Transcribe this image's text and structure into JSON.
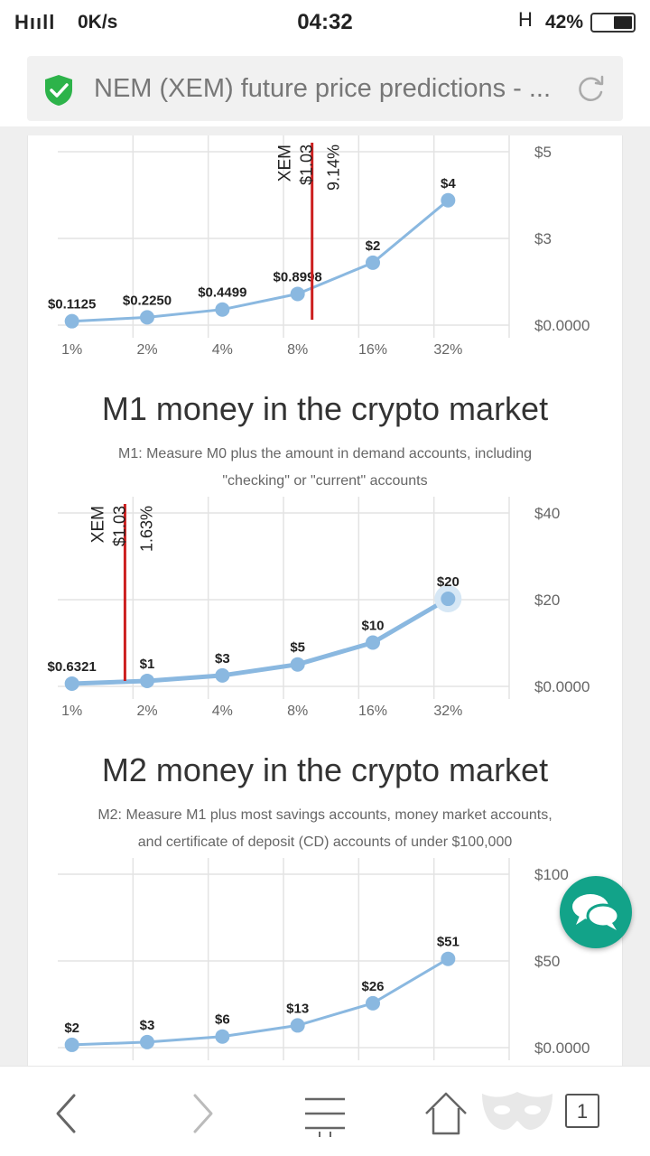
{
  "status_bar": {
    "signal": "Hııll",
    "net_speed": "0K/s",
    "time": "04:32",
    "network_type": "H",
    "battery": "42%"
  },
  "browser": {
    "url_title": "NEM (XEM) future price predictions - ...",
    "secure_icon": "shield-check-icon",
    "reload_icon": "reload-icon"
  },
  "charts": [
    {
      "id": "m0",
      "title": "",
      "subtitle": [],
      "marker": {
        "coin": "XEM",
        "price": "$1.03",
        "pct": "9.14%"
      },
      "right_ticks": [
        "$5",
        "$3",
        "$0.0000"
      ],
      "x_ticks": [
        "1%",
        "2%",
        "4%",
        "8%",
        "16%",
        "32%"
      ]
    },
    {
      "id": "m1",
      "title": "M1 money in the crypto market",
      "subtitle": [
        "M1: Measure M0 plus the amount in demand accounts, including",
        "\"checking\" or \"current\" accounts"
      ],
      "marker": {
        "coin": "XEM",
        "price": "$1.03",
        "pct": "1.63%"
      },
      "right_ticks": [
        "$40",
        "$20",
        "$0.0000"
      ],
      "x_ticks": [
        "1%",
        "2%",
        "4%",
        "8%",
        "16%",
        "32%"
      ]
    },
    {
      "id": "m2",
      "title": "M2 money in the crypto market",
      "subtitle": [
        "M2: Measure M1 plus most savings accounts, money market accounts,",
        "and certificate of deposit (CD) accounts of under $100,000"
      ],
      "right_ticks": [
        "$100",
        "$50",
        "$0.0000"
      ]
    }
  ],
  "chart_data": [
    {
      "type": "line",
      "x": [
        "1%",
        "2%",
        "4%",
        "8%",
        "16%",
        "32%"
      ],
      "values": [
        0.1125,
        0.225,
        0.4499,
        0.8998,
        1.8,
        3.6
      ],
      "labels": [
        "$0.1125",
        "$0.2250",
        "$0.4499",
        "$0.8998",
        "$2",
        "$4"
      ],
      "ylim": [
        0,
        5
      ],
      "marker_x_pct": 9.14,
      "marker_label": "XEM $1.03 9.14%",
      "line_color": "#8ab8e0",
      "marker_color": "#cc1f1f"
    },
    {
      "type": "line",
      "x": [
        "1%",
        "2%",
        "4%",
        "8%",
        "16%",
        "32%"
      ],
      "values": [
        0.6321,
        1.26,
        2.53,
        5.06,
        10.1,
        20.2
      ],
      "labels": [
        "$0.6321",
        "$1",
        "$3",
        "$5",
        "$10",
        "$20"
      ],
      "ylim": [
        0,
        40
      ],
      "marker_x_pct": 1.63,
      "marker_label": "XEM $1.03 1.63%",
      "line_color": "#8ab8e0",
      "marker_color": "#cc1f1f"
    },
    {
      "type": "line",
      "x": [
        "1%",
        "2%",
        "4%",
        "8%",
        "16%",
        "32%"
      ],
      "values": [
        1.6,
        3.2,
        6.4,
        12.8,
        25.6,
        51.2
      ],
      "labels": [
        "$2",
        "$3",
        "$6",
        "$13",
        "$26",
        "$51"
      ],
      "ylim": [
        0,
        100
      ],
      "line_color": "#8ab8e0"
    }
  ],
  "nav": {
    "back_icon": "chevron-left-icon",
    "forward_icon": "chevron-right-icon",
    "menu_icon": "menu-icon",
    "home_icon": "home-icon",
    "incognito_icon": "mask-icon",
    "tabs_count": "1"
  },
  "chat_icon": "chat-bubbles-icon"
}
